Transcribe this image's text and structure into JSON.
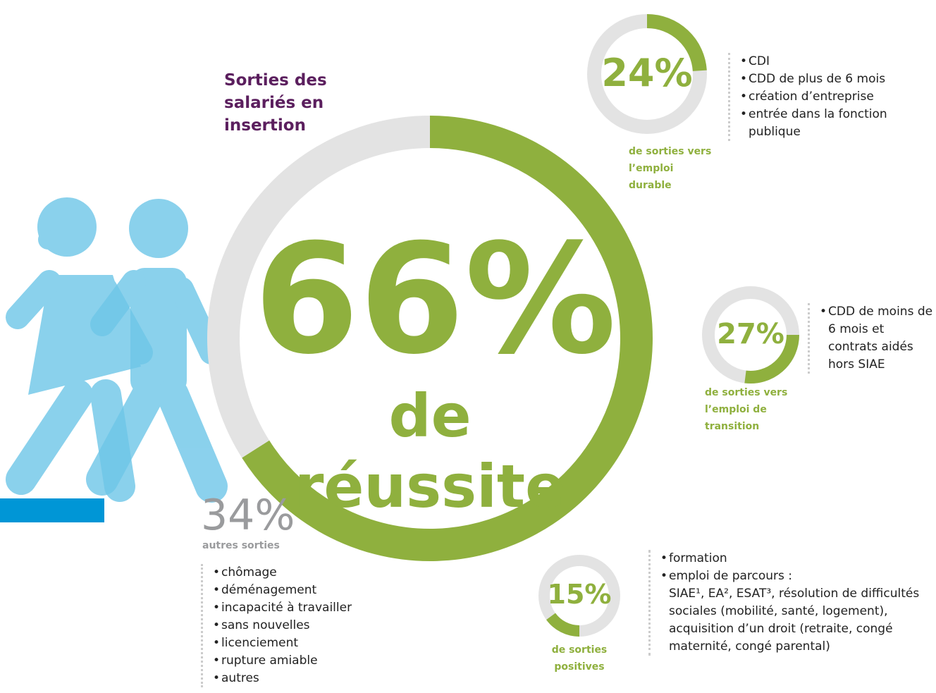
{
  "title": "Sorties des salariés en insertion",
  "main": {
    "value": 66,
    "value_label": "66%",
    "caption": "de réussite"
  },
  "other": {
    "value": 34,
    "value_label": "34%",
    "caption": "autres sorties",
    "items": [
      "chômage",
      "déménagement",
      "incapacité à travailler",
      "sans nouvelles",
      "licenciement",
      "rupture amiable",
      "autres"
    ]
  },
  "breakdown": [
    {
      "value": 24,
      "value_label": "24%",
      "caption": "de sorties vers l’emploi durable",
      "items": [
        {
          "label": "CDI"
        },
        {
          "label": "CDD de plus de 6 mois"
        },
        {
          "label": "création d’entreprise"
        },
        {
          "label": "entrée dans la fonction publique"
        }
      ]
    },
    {
      "value": 27,
      "value_label": "27%",
      "caption": "de sorties vers l’emploi de transition",
      "items": [
        {
          "label": "CDD de moins de 6 mois et contrats aidés hors SIAE"
        }
      ]
    },
    {
      "value": 15,
      "value_label": "15%",
      "caption": "de sorties positives",
      "items": [
        {
          "label": "formation"
        },
        {
          "label": "emploi de parcours :",
          "detail": "SIAE¹, EA², ESAT³, résolution de difficultés sociales (mobilité, santé, logement), acquisition d’un droit (retraite, congé maternité, congé parental)"
        }
      ]
    }
  ]
}
